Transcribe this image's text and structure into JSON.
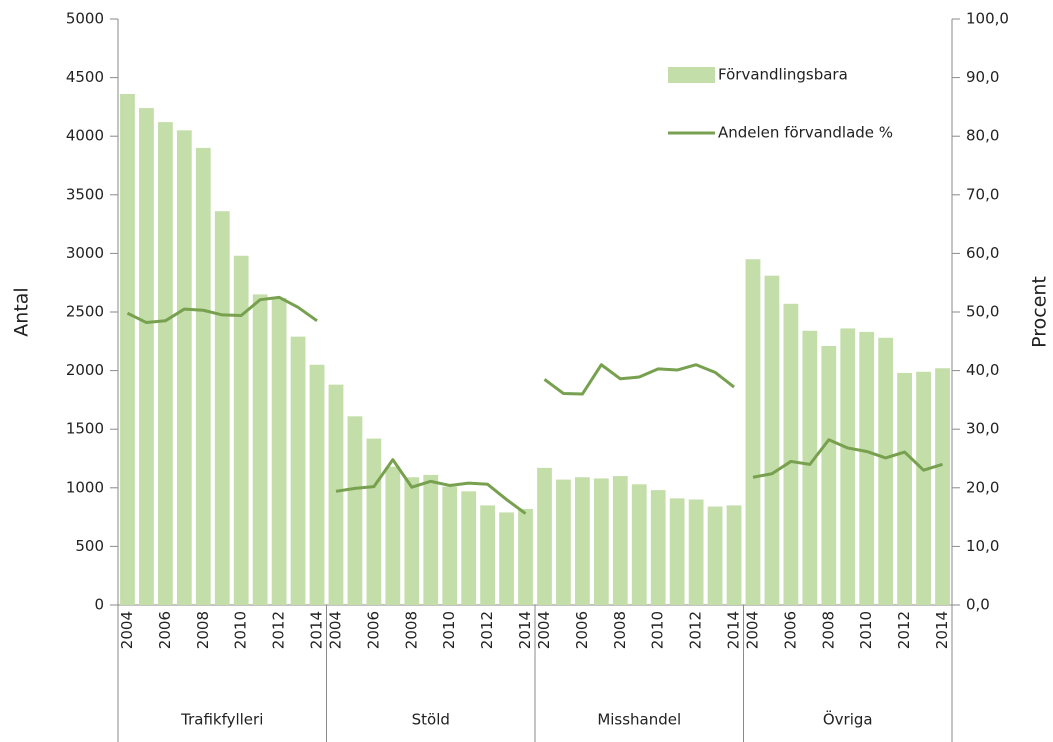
{
  "chart_data": {
    "type": "bar",
    "categories": [
      "2004",
      null,
      "2006",
      null,
      "2008",
      null,
      "2010",
      null,
      "2012",
      null,
      "2014"
    ],
    "groups": [
      "Trafikfylleri",
      "Stöld",
      "Misshandel",
      "Övriga"
    ],
    "series": [
      {
        "name": "Förvandlingsbara",
        "color": "#c4deaa",
        "values": [
          [
            4360,
            4240,
            4120,
            4050,
            3900,
            3360,
            2980,
            2650,
            2620,
            2290,
            2050
          ],
          [
            1880,
            1610,
            1420,
            1180,
            1090,
            1110,
            1010,
            970,
            850,
            790,
            820
          ],
          [
            1170,
            1070,
            1090,
            1080,
            1100,
            1030,
            980,
            910,
            900,
            840,
            850
          ],
          [
            2950,
            2810,
            2570,
            2340,
            2210,
            2360,
            2330,
            2280,
            1980,
            1990,
            2020
          ]
        ]
      },
      {
        "name": "Andelen förvandlade %",
        "color": "#77a04f",
        "axis": "y2",
        "values": [
          [
            49.8,
            48.2,
            48.5,
            50.5,
            50.3,
            49.5,
            49.4,
            52.1,
            52.5,
            50.8,
            48.5
          ],
          [
            19.4,
            19.9,
            20.2,
            24.8,
            20.1,
            21.1,
            20.4,
            20.8,
            20.6,
            18.0,
            15.6
          ],
          [
            38.5,
            36.1,
            36.0,
            41.0,
            38.6,
            38.9,
            40.3,
            40.1,
            41.0,
            39.7,
            37.2
          ],
          [
            21.8,
            22.4,
            24.5,
            24.0,
            28.2,
            26.8,
            26.2,
            25.1,
            26.1,
            23.0,
            24.0
          ]
        ]
      }
    ],
    "ylabel": "Antal",
    "y2label": "Procent",
    "ylim": [
      0,
      5000
    ],
    "yticks": [
      0,
      500,
      1000,
      1500,
      2000,
      2500,
      3000,
      3500,
      4000,
      4500,
      5000
    ],
    "y2lim": [
      0,
      100
    ],
    "y2ticks": [
      {
        "value": 0,
        "label": "0,0"
      },
      {
        "value": 10,
        "label": "10,0"
      },
      {
        "value": 20,
        "label": "20,0"
      },
      {
        "value": 30,
        "label": "30,0"
      },
      {
        "value": 40,
        "label": "40,0"
      },
      {
        "value": 50,
        "label": "50,0"
      },
      {
        "value": 60,
        "label": "60,0"
      },
      {
        "value": 70,
        "label": "70,0"
      },
      {
        "value": 80,
        "label": "80,0"
      },
      {
        "value": 90,
        "label": "90,0"
      },
      {
        "value": 100,
        "label": "100,0"
      }
    ],
    "legend": "top-right"
  }
}
